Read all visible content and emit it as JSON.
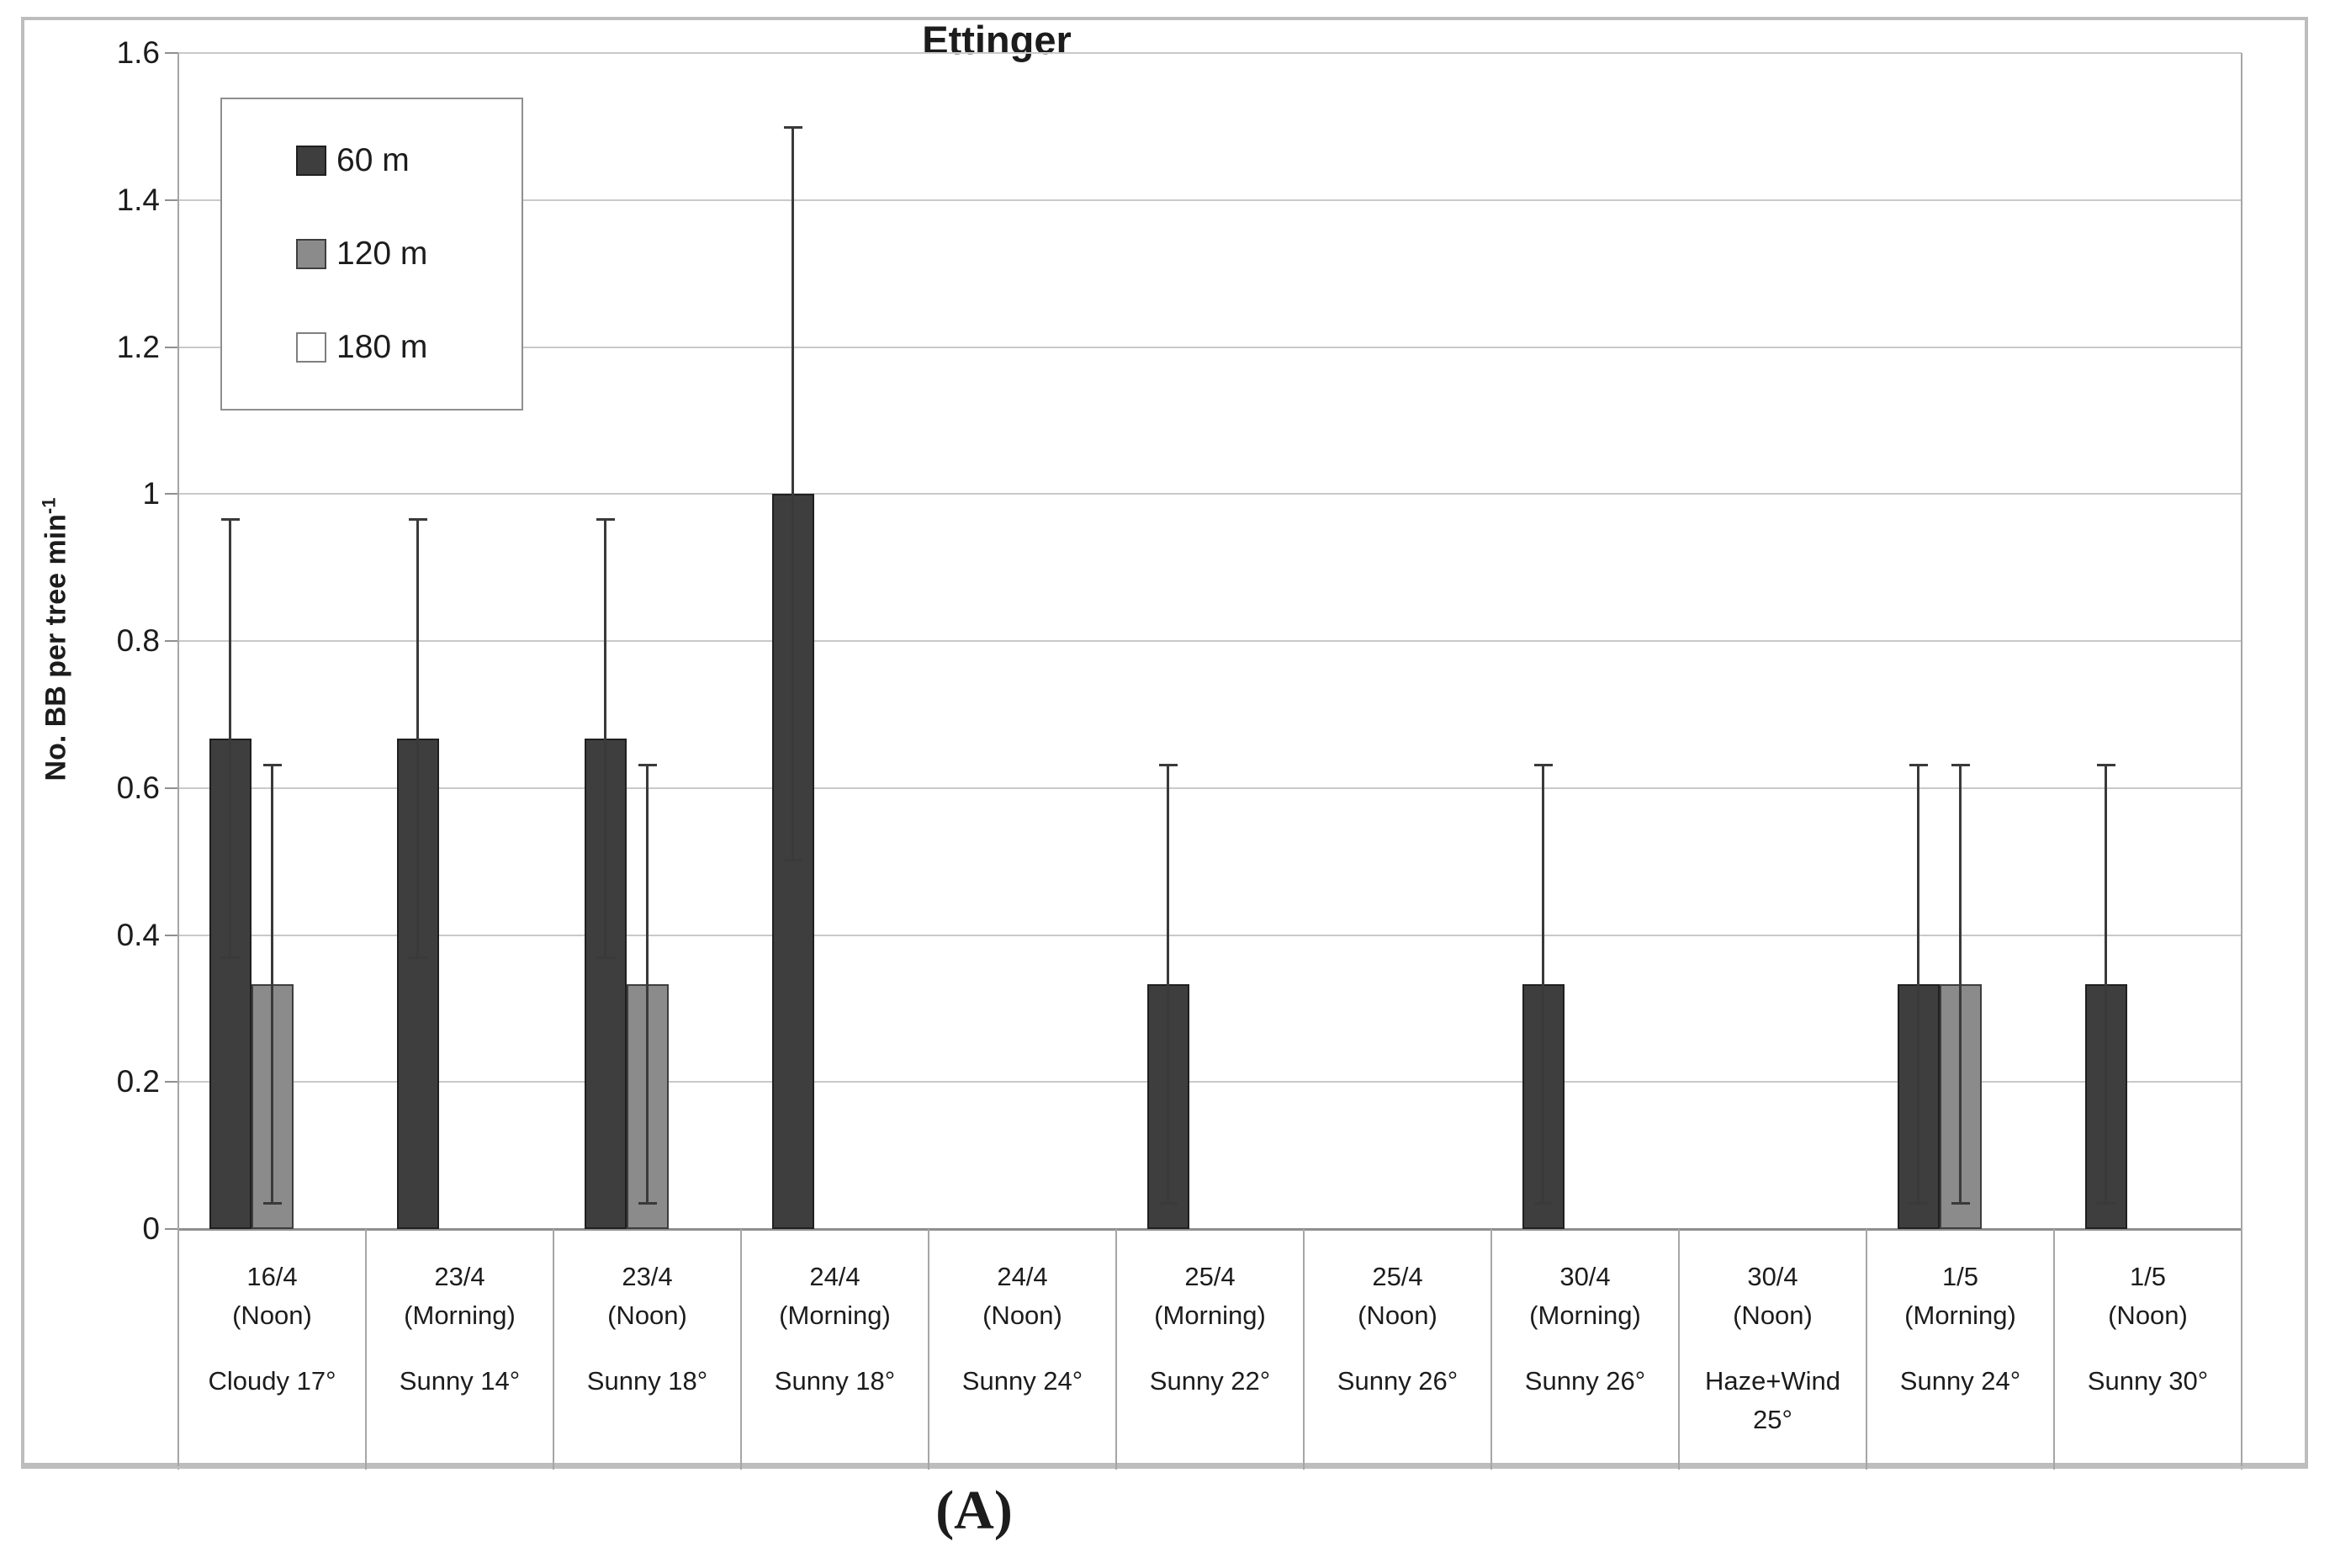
{
  "figure": {
    "title": "Ettinger",
    "caption": "(A)",
    "y_axis": {
      "label_main": "No. BB per tree min",
      "label_sup": "-1"
    },
    "legend": [
      {
        "label": "60 m",
        "fill": "#3e3e3e",
        "border": "#1f1f1f"
      },
      {
        "label": "120 m",
        "fill": "#8b8b8b",
        "border": "#3e3e3e"
      },
      {
        "label": "180 m",
        "fill": "#ffffff",
        "border": "#7f7f7f"
      }
    ]
  },
  "chart_data": {
    "type": "bar",
    "title": "Ettinger",
    "ylabel": "No. BB per tree min⁻¹",
    "xlabel": "",
    "ylim": [
      0,
      1.6
    ],
    "grid": true,
    "legend_position": "top-left",
    "error_bars": true,
    "yticks": [
      {
        "value": 1.6,
        "label": "1.6"
      },
      {
        "value": 1.4,
        "label": "1.4"
      },
      {
        "value": 1.2,
        "label": "1.2"
      },
      {
        "value": 1.0,
        "label": "1"
      },
      {
        "value": 0.8,
        "label": "0.8"
      },
      {
        "value": 0.6,
        "label": "0.6"
      },
      {
        "value": 0.4,
        "label": "0.4"
      },
      {
        "value": 0.2,
        "label": "0.2"
      },
      {
        "value": 0.0,
        "label": "0"
      }
    ],
    "categories": [
      {
        "date": "16/4",
        "session": "(Noon)",
        "weather": "Cloudy 17°"
      },
      {
        "date": "23/4",
        "session": "(Morning)",
        "weather": "Sunny 14°"
      },
      {
        "date": "23/4",
        "session": "(Noon)",
        "weather": "Sunny 18°"
      },
      {
        "date": "24/4",
        "session": "(Morning)",
        "weather": "Sunny 18°"
      },
      {
        "date": "24/4",
        "session": "(Noon)",
        "weather": "Sunny 24°"
      },
      {
        "date": "25/4",
        "session": "(Morning)",
        "weather": "Sunny 22°"
      },
      {
        "date": "25/4",
        "session": "(Noon)",
        "weather": "Sunny 26°"
      },
      {
        "date": "30/4",
        "session": "(Morning)",
        "weather": "Sunny 26°"
      },
      {
        "date": "30/4",
        "session": "(Noon)",
        "weather": "Haze+Wind 25°"
      },
      {
        "date": "1/5",
        "session": "(Morning)",
        "weather": "Sunny 24°"
      },
      {
        "date": "1/5",
        "session": "(Noon)",
        "weather": "Sunny 30°"
      }
    ],
    "series": [
      {
        "name": "60 m",
        "color": "#3e3e3e",
        "border": "#1f1f1f",
        "values": [
          0.667,
          0.667,
          0.667,
          1.0,
          null,
          0.333,
          null,
          0.333,
          null,
          0.333,
          0.333
        ],
        "errors": [
          0.3,
          0.3,
          0.3,
          0.5,
          null,
          0.3,
          null,
          0.3,
          null,
          0.3,
          0.3
        ]
      },
      {
        "name": "120 m",
        "color": "#8b8b8b",
        "border": "#3e3e3e",
        "values": [
          0.333,
          null,
          0.333,
          null,
          null,
          null,
          null,
          null,
          null,
          0.333,
          null
        ],
        "errors": [
          0.3,
          null,
          0.3,
          null,
          null,
          null,
          null,
          null,
          null,
          0.3,
          null
        ]
      },
      {
        "name": "180 m",
        "color": "#ffffff",
        "border": "#7f7f7f",
        "values": [
          null,
          null,
          null,
          null,
          null,
          null,
          null,
          null,
          null,
          null,
          null
        ],
        "errors": [
          null,
          null,
          null,
          null,
          null,
          null,
          null,
          null,
          null,
          null,
          null
        ]
      }
    ]
  }
}
